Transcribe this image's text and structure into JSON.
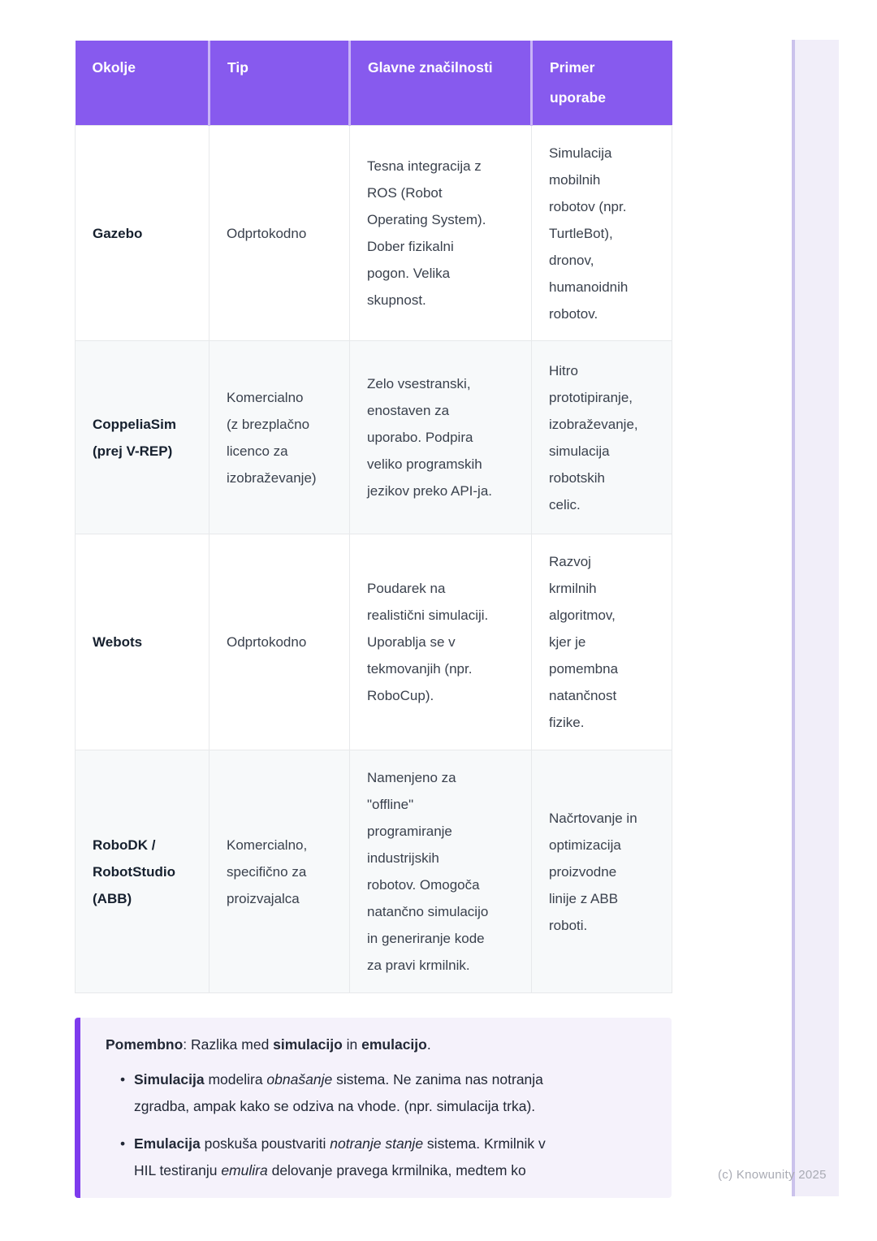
{
  "theme": {
    "header_purple": "#875AEE",
    "callout_border_purple": "#7E3BED",
    "callout_background": "#F5F2FB",
    "row_alt_background": "#F7F9FA",
    "table_border": "#E7E9EB",
    "side_strip_background": "#F1EEF9",
    "side_strip_border": "#CBC2EC",
    "watermark_gray": "#A9ABB4"
  },
  "table": {
    "headers": [
      "Okolje",
      "Tip",
      "Glavne značilnosti",
      "Primer\nuporabe"
    ],
    "rows": [
      [
        "Gazebo",
        "Odprtokodno",
        "Tesna integracija z\nROS (Robot\nOperating System).\nDober fizikalni\npogon. Velika\nskupnost.",
        "Simulacija\nmobilnih\nrobotov (npr.\nTurtleBot),\ndronov,\nhumanoidnih\nrobotov."
      ],
      [
        "CoppeliaSim\n(prej V-REP)",
        "Komercialno\n(z brezplačno\nlicenco za\nizobraževanje)",
        "Zelo vsestranski,\nenostaven za\nuporabo. Podpira\nveliko programskih\njezikov preko API-ja.",
        "Hitro\nprototipiranje,\nizobraževanje,\nsimulacija\nrobotskih\ncelic."
      ],
      [
        "Webots",
        "Odprtokodno",
        "Poudarek na\nrealistični simulaciji.\nUporablja se v\ntekmovanjih (npr.\nRoboCup).",
        "Razvoj\nkrmilnih\nalgoritmov,\nkjer je\npomembna\nnatančnost\nfizike."
      ],
      [
        "RoboDK /\nRobotStudio\n(ABB)",
        "Komercialno,\nspecifično za\nproizvajalca",
        "Namenjeno za\n\"offline\"\nprogramiranje\nindustrijskih\nrobotov. Omogoča\nnatančno simulacijo\nin generiranje kode\nza pravi krmilnik.",
        "Načrtovanje in\noptimizacija\nproizvodne\nlinije z ABB\nroboti."
      ]
    ]
  },
  "callout": {
    "title": [
      {
        "t": "Pomembno",
        "b": 1
      },
      {
        "t": ": Razlika med "
      },
      {
        "t": "simulacijo",
        "b": 1
      },
      {
        "t": " in "
      },
      {
        "t": "emulacijo",
        "b": 1
      },
      {
        "t": "."
      }
    ],
    "bullets": [
      [
        {
          "t": "Simulacija",
          "b": 1
        },
        {
          "t": " modelira "
        },
        {
          "t": "obnašanje",
          "i": 1
        },
        {
          "t": " sistema. Ne zanima nas notranja\nzgradba, ampak kako se odziva na vhode. (npr. simulacija trka)."
        }
      ],
      [
        {
          "t": "Emulacija",
          "b": 1
        },
        {
          "t": " poskuša poustvariti "
        },
        {
          "t": "notranje stanje",
          "i": 1
        },
        {
          "t": " sistema. Krmilnik v\nHIL testiranju "
        },
        {
          "t": "emulira",
          "i": 1
        },
        {
          "t": " delovanje pravega krmilnika, medtem ko"
        }
      ]
    ]
  },
  "watermark": "(c) Knowunity 2025"
}
